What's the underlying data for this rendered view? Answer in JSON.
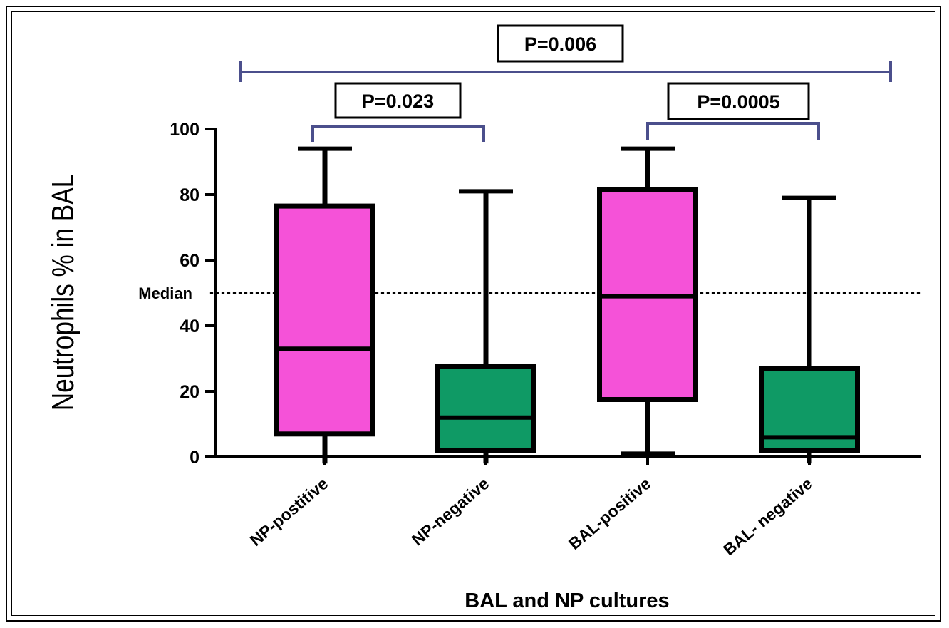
{
  "chart_data": {
    "type": "box",
    "title": "",
    "xlabel": "BAL and NP cultures",
    "ylabel": "Neutrophils % in BAL",
    "ylim": [
      0,
      100
    ],
    "yticks": [
      0,
      20,
      40,
      60,
      80,
      100
    ],
    "categories": [
      "NP-postitive",
      "NP-negative",
      "BAL-positive",
      "BAL- negative"
    ],
    "boxes": [
      {
        "category": "NP-postitive",
        "min": -2,
        "q1": 7,
        "median": 33,
        "q3": 76.5,
        "max": 94,
        "color": "#f552d8"
      },
      {
        "category": "NP-negative",
        "min": -2,
        "q1": 2,
        "median": 12,
        "q3": 27.5,
        "max": 81,
        "color": "#0f9a65"
      },
      {
        "category": "BAL-positive",
        "min": 1,
        "q1": 17.5,
        "median": 49,
        "q3": 81.5,
        "max": 94,
        "color": "#f552d8"
      },
      {
        "category": "BAL- negative",
        "min": -2,
        "q1": 2,
        "median": 6,
        "q3": 27,
        "max": 79,
        "color": "#0f9a65"
      }
    ],
    "reference_line": {
      "label": "Median",
      "value": 50,
      "style": "dotted"
    },
    "comparisons": [
      {
        "from": "NP-postitive",
        "to": "NP-negative",
        "label": "P=0.023"
      },
      {
        "from": "BAL-positive",
        "to": "BAL- negative",
        "label": "P=0.0005"
      },
      {
        "from": "NP-postitive",
        "to": "BAL- negative",
        "label": "P=0.006"
      }
    ],
    "bracket_color": "#4b4f8c"
  }
}
